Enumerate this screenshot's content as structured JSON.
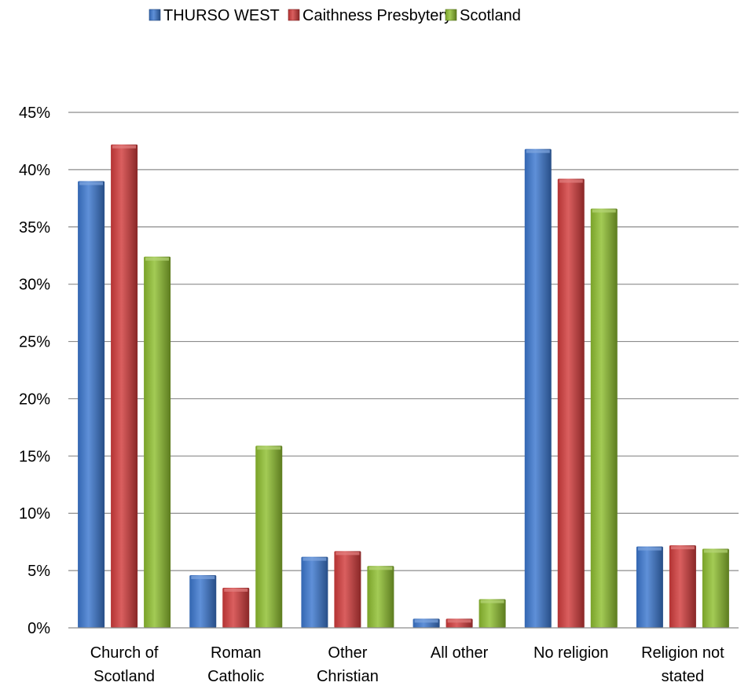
{
  "chart_data": {
    "type": "bar",
    "categories": [
      [
        "Church of",
        "Scotland"
      ],
      [
        "Roman",
        "Catholic"
      ],
      [
        "Other",
        "Christian"
      ],
      [
        "All other"
      ],
      [
        "No religion"
      ],
      [
        "Religion not",
        "stated"
      ]
    ],
    "series": [
      {
        "name": "THURSO WEST",
        "color": "#3c78d0",
        "values": [
          39.0,
          4.6,
          6.2,
          0.8,
          41.8,
          7.1
        ]
      },
      {
        "name": "Caithness Presbytery",
        "color": "#d23c3c",
        "values": [
          42.2,
          3.5,
          6.7,
          0.8,
          39.2,
          7.2
        ]
      },
      {
        "name": "Scotland",
        "color": "#8fbf30",
        "values": [
          32.4,
          15.9,
          5.4,
          2.5,
          36.6,
          6.9
        ]
      }
    ],
    "ylim": [
      0,
      45
    ],
    "yticks": [
      0,
      5,
      10,
      15,
      20,
      25,
      30,
      35,
      40,
      45
    ],
    "ytick_labels": [
      "0%",
      "5%",
      "10%",
      "15%",
      "20%",
      "25%",
      "30%",
      "35%",
      "40%",
      "45%"
    ],
    "legend_position": "top-center",
    "grid": true
  }
}
